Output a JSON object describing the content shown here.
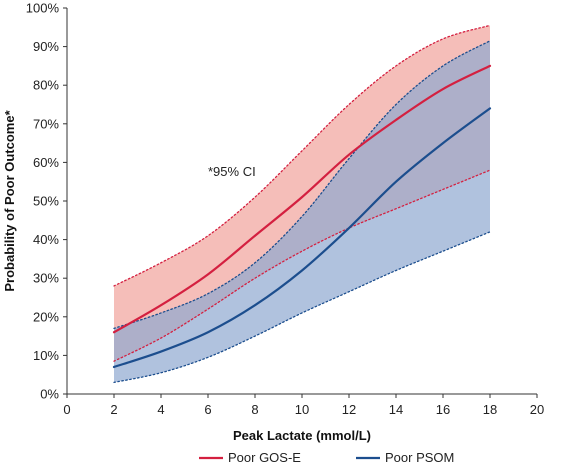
{
  "chart_data": {
    "type": "line",
    "xlabel": "Peak Lactate (mmol/L)",
    "ylabel": "Probability of Poor Outcome*",
    "xlim": [
      0,
      20
    ],
    "ylim": [
      0,
      100
    ],
    "x_ticks": [
      0,
      2,
      4,
      6,
      8,
      10,
      12,
      14,
      16,
      18,
      20
    ],
    "y_ticks": [
      0,
      10,
      20,
      30,
      40,
      50,
      60,
      70,
      80,
      90,
      100
    ],
    "y_tick_labels": [
      "0%",
      "10%",
      "20%",
      "30%",
      "40%",
      "50%",
      "60%",
      "70%",
      "80%",
      "90%",
      "100%"
    ],
    "annotation": "*95% CI",
    "legend_position": "bottom",
    "grid": false,
    "x": [
      2,
      4,
      6,
      8,
      10,
      12,
      14,
      16,
      18
    ],
    "series": [
      {
        "name": "Poor GOS-E",
        "color": "#d42040",
        "band_color": "#f2a8a2",
        "values": [
          16,
          23,
          31,
          41,
          51,
          62,
          71,
          79,
          85
        ],
        "ci_lower": [
          8.5,
          14.5,
          22,
          30,
          37,
          43,
          48,
          53,
          58
        ],
        "ci_upper": [
          28,
          34,
          41,
          51,
          63,
          75,
          85,
          92,
          95.5
        ]
      },
      {
        "name": "Poor PSOM",
        "color": "#1c4e8e",
        "band_color": "#8ea8d0",
        "values": [
          7,
          11,
          16,
          23,
          32,
          43,
          55,
          65,
          74
        ],
        "ci_lower": [
          3,
          5.5,
          9.5,
          15,
          21,
          26.5,
          32,
          37,
          42
        ],
        "ci_upper": [
          17,
          21,
          26,
          34,
          46,
          61,
          75,
          85,
          91.5
        ]
      }
    ]
  }
}
